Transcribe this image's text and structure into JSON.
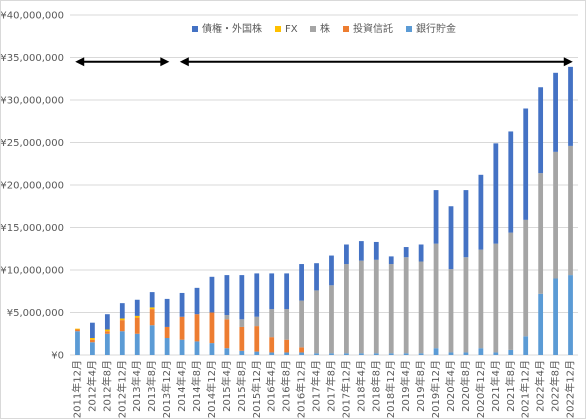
{
  "chart_data": {
    "type": "bar",
    "stacked": true,
    "title": "",
    "xlabel": "",
    "ylabel": "",
    "ylim": [
      0,
      40000000
    ],
    "y_ticks": [
      "¥0",
      "¥5,000,000",
      "¥10,000,000",
      "¥15,000,000",
      "¥20,000,000",
      "¥25,000,000",
      "¥30,000,000",
      "¥35,000,000",
      "¥40,000,000"
    ],
    "grid": true,
    "legend_position": "top",
    "categories": [
      "2011年12月",
      "2012年4月",
      "2012年8月",
      "2012年12月",
      "2013年4月",
      "2013年8月",
      "2013年12月",
      "2014年4月",
      "2014年8月",
      "2014年12月",
      "2015年4月",
      "2015年8月",
      "2015年12月",
      "2016年4月",
      "2016年8月",
      "2016年12月",
      "2017年4月",
      "2017年8月",
      "2017年12月",
      "2018年4月",
      "2018年8月",
      "2018年12月",
      "2019年4月",
      "2019年8月",
      "2019年12月",
      "2020年4月",
      "2020年8月",
      "2020年12月",
      "2021年4月",
      "2021年8月",
      "2021年12月",
      "2022年4月",
      "2022年8月",
      "2022年12月"
    ],
    "series": [
      {
        "name": "銀行貯金",
        "color": "#5B9BD5",
        "values": [
          2800000,
          1500000,
          2500000,
          2800000,
          2500000,
          3500000,
          2000000,
          1800000,
          1600000,
          1400000,
          800000,
          500000,
          400000,
          300000,
          300000,
          300000,
          200000,
          200000,
          200000,
          200000,
          200000,
          200000,
          200000,
          200000,
          800000,
          300000,
          300000,
          800000,
          300000,
          600000,
          2200000,
          7200000,
          9000000,
          9400000
        ]
      },
      {
        "name": "投資信託",
        "color": "#ED7D31",
        "values": [
          200000,
          300000,
          300000,
          1300000,
          1900000,
          1900000,
          1300000,
          2700000,
          3200000,
          3600000,
          3400000,
          2800000,
          3000000,
          1800000,
          1500000,
          600000,
          0,
          0,
          0,
          0,
          0,
          0,
          0,
          0,
          0,
          0,
          0,
          0,
          0,
          0,
          0,
          0,
          0,
          0
        ]
      },
      {
        "name": "株",
        "color": "#A5A5A5",
        "values": [
          0,
          0,
          0,
          0,
          0,
          0,
          0,
          0,
          0,
          0,
          500000,
          900000,
          1100000,
          3300000,
          3600000,
          5500000,
          7400000,
          8000000,
          10500000,
          10900000,
          11000000,
          10500000,
          11300000,
          10800000,
          12300000,
          9800000,
          11200000,
          11600000,
          12800000,
          13800000,
          13700000,
          14200000,
          14900000,
          15200000
        ]
      },
      {
        "name": "FX",
        "color": "#FFC000",
        "values": [
          100000,
          200000,
          200000,
          200000,
          200000,
          200000,
          0,
          0,
          0,
          0,
          0,
          0,
          0,
          0,
          0,
          0,
          0,
          0,
          0,
          0,
          0,
          0,
          0,
          0,
          0,
          0,
          0,
          0,
          0,
          0,
          0,
          0,
          0,
          0
        ]
      },
      {
        "name": "債権・外国株",
        "color": "#4472C4",
        "values": [
          0,
          1800000,
          1800000,
          1800000,
          1900000,
          1800000,
          3300000,
          2800000,
          3100000,
          4200000,
          4700000,
          5200000,
          5100000,
          4200000,
          4200000,
          4300000,
          3200000,
          3500000,
          2300000,
          2300000,
          2100000,
          900000,
          1200000,
          2000000,
          6300000,
          7400000,
          7900000,
          8800000,
          11800000,
          11900000,
          13100000,
          10100000,
          9300000,
          9300000
        ]
      }
    ],
    "annotations": [
      {
        "type": "double-arrow",
        "y_value": 34500000,
        "from_index": 0,
        "to_index": 6
      },
      {
        "type": "double-arrow",
        "y_value": 34500000,
        "from_index": 7,
        "to_index": 33
      }
    ]
  },
  "legend_order": [
    "債権・外国株",
    "FX",
    "株",
    "投資信託",
    "銀行貯金"
  ]
}
